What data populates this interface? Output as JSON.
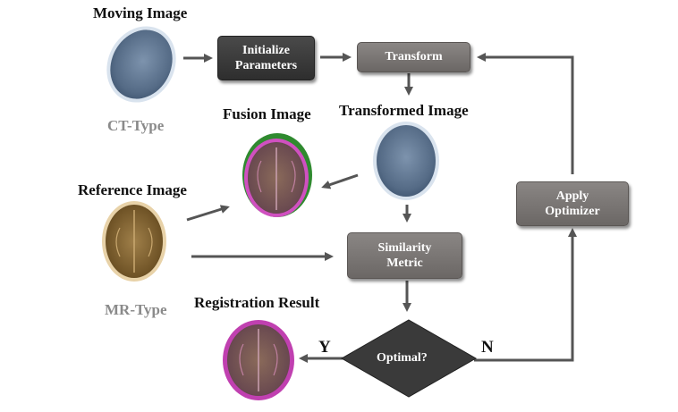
{
  "labels": {
    "moving_image": "Moving Image",
    "ct_type": "CT-Type",
    "fusion_image": "Fusion Image",
    "transformed_image": "Transformed Image",
    "reference_image": "Reference Image",
    "mr_type": "MR-Type",
    "registration_result": "Registration Result"
  },
  "boxes": {
    "initialize_line1": "Initialize",
    "initialize_line2": "Parameters",
    "transform": "Transform",
    "similarity_line1": "Similarity",
    "similarity_line2": "Metric",
    "apply_line1": "Apply",
    "apply_line2": "Optimizer"
  },
  "decision": {
    "label": "Optimal?",
    "yes": "Y",
    "no": "N"
  },
  "colors": {
    "box_gray": "#7a7674",
    "box_dark": "#3a3a3a",
    "arrow": "#555555",
    "ct_blue": "#5f7590",
    "mr_brown": "#8a6a3a",
    "fusion_magenta": "#c040b0",
    "fusion_green": "#3a9a3a"
  }
}
